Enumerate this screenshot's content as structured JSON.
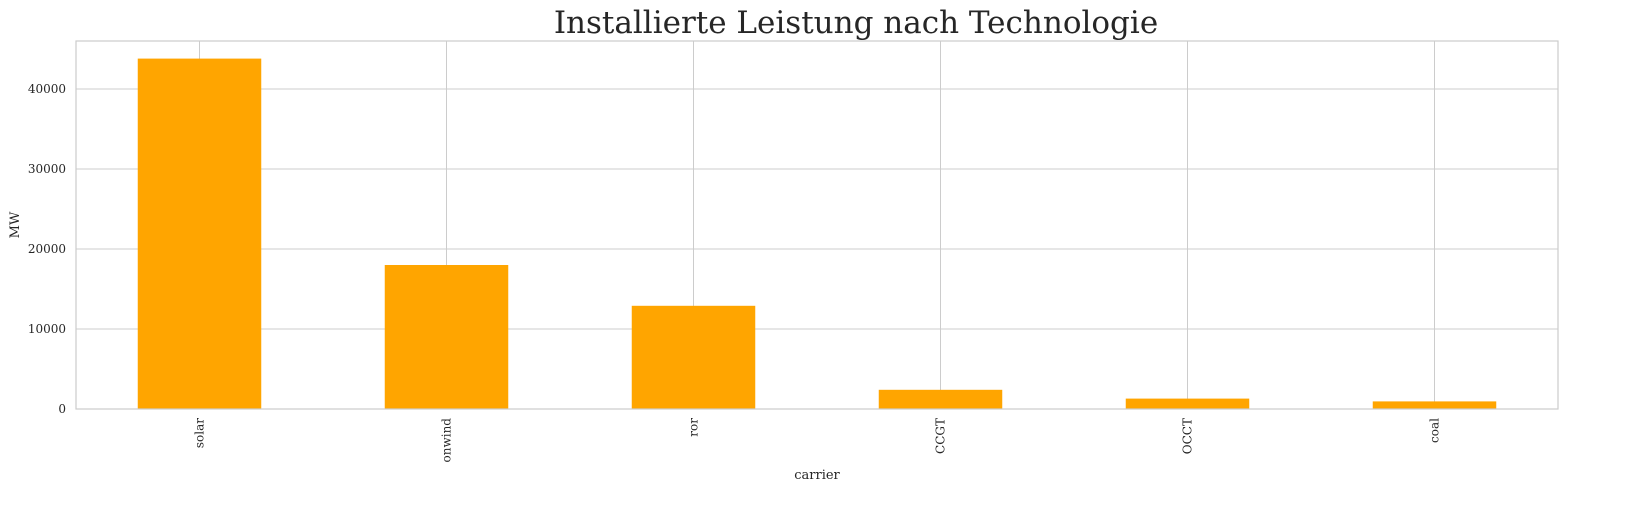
{
  "chart_data": {
    "type": "bar",
    "title": "Installierte Leistung nach Technologie",
    "xlabel": "carrier",
    "ylabel": "MW",
    "categories": [
      "solar",
      "onwind",
      "ror",
      "CCGT",
      "OCCT",
      "coal"
    ],
    "values": [
      43800,
      18000,
      12900,
      2400,
      1300,
      950
    ],
    "ylim": [
      0,
      46000
    ],
    "yticks": [
      0,
      10000,
      20000,
      30000,
      40000
    ],
    "ytick_labels": [
      "0",
      "10000",
      "20000",
      "30000",
      "40000"
    ],
    "grid": true,
    "bar_color": "#ffa500",
    "legend": "none"
  }
}
